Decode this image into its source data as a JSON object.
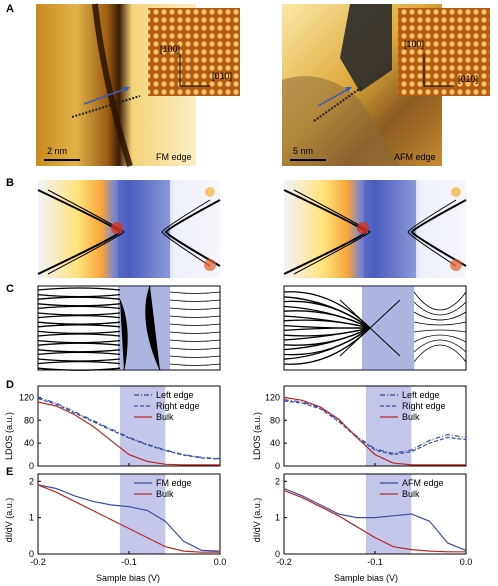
{
  "panel_labels": {
    "A": "A",
    "B": "B",
    "C": "C",
    "D": "D",
    "E": "E"
  },
  "stm_images": [
    {
      "scale_bar": "2 nm",
      "edge_label": "FM edge",
      "dir1": "[100]",
      "dir2": "[010]"
    },
    {
      "scale_bar": "5 nm",
      "edge_label": "AFM edge",
      "dir1": "[100]",
      "dir2": "[010]"
    }
  ],
  "axes": {
    "D_ylabel": "LDOS (a.u.)",
    "E_ylabel": "dI/dV (a.u.)",
    "xlabel": "Sample bias (V)",
    "D_yticks": [
      "0",
      "40",
      "80",
      "120"
    ],
    "E_yticks": [
      "0",
      "1",
      "2"
    ],
    "xticks": [
      "-0.2",
      "-0.1",
      "0.0"
    ]
  },
  "chart_data": [
    {
      "type": "line",
      "panel": "D",
      "side": "left",
      "xlim": [
        -0.2,
        0.0
      ],
      "ylim": [
        0,
        140
      ],
      "series": [
        {
          "name": "Left edge",
          "style": "dashdot",
          "color": "#3b4fa3",
          "x": [
            -0.2,
            -0.18,
            -0.16,
            -0.14,
            -0.12,
            -0.1,
            -0.08,
            -0.06,
            -0.04,
            -0.02,
            0.0
          ],
          "y": [
            120,
            110,
            95,
            80,
            65,
            50,
            38,
            28,
            20,
            15,
            13
          ]
        },
        {
          "name": "Right edge",
          "style": "dash",
          "color": "#3b4fa3",
          "x": [
            -0.2,
            -0.18,
            -0.16,
            -0.14,
            -0.12,
            -0.1,
            -0.08,
            -0.06,
            -0.04,
            -0.02,
            0.0
          ],
          "y": [
            118,
            108,
            93,
            78,
            63,
            49,
            37,
            27,
            19,
            14,
            12
          ]
        },
        {
          "name": "Bulk",
          "style": "solid",
          "color": "#b52b2b",
          "x": [
            -0.2,
            -0.18,
            -0.16,
            -0.14,
            -0.12,
            -0.1,
            -0.08,
            -0.06,
            -0.04,
            -0.02,
            0.0
          ],
          "y": [
            112,
            105,
            90,
            70,
            45,
            20,
            8,
            3,
            2,
            2,
            2
          ]
        }
      ]
    },
    {
      "type": "line",
      "panel": "D",
      "side": "right",
      "xlim": [
        -0.2,
        0.0
      ],
      "ylim": [
        0,
        140
      ],
      "series": [
        {
          "name": "Left edge",
          "style": "dashdot",
          "color": "#3b4fa3",
          "x": [
            -0.2,
            -0.18,
            -0.16,
            -0.14,
            -0.12,
            -0.1,
            -0.08,
            -0.06,
            -0.04,
            -0.02,
            0.0
          ],
          "y": [
            116,
            112,
            102,
            80,
            52,
            30,
            22,
            28,
            45,
            55,
            50
          ]
        },
        {
          "name": "Right edge",
          "style": "dash",
          "color": "#3b4fa3",
          "x": [
            -0.2,
            -0.18,
            -0.16,
            -0.14,
            -0.12,
            -0.1,
            -0.08,
            -0.06,
            -0.04,
            -0.02,
            0.0
          ],
          "y": [
            114,
            110,
            100,
            78,
            50,
            28,
            20,
            25,
            40,
            50,
            46
          ]
        },
        {
          "name": "Bulk",
          "style": "solid",
          "color": "#b52b2b",
          "x": [
            -0.2,
            -0.18,
            -0.16,
            -0.14,
            -0.12,
            -0.1,
            -0.08,
            -0.06,
            -0.04,
            -0.02,
            0.0
          ],
          "y": [
            120,
            115,
            103,
            82,
            50,
            20,
            5,
            2,
            2,
            2,
            2
          ]
        }
      ]
    },
    {
      "type": "line",
      "panel": "E",
      "side": "left",
      "xlim": [
        -0.2,
        0.0
      ],
      "ylim": [
        0,
        2.2
      ],
      "series": [
        {
          "name": "FM edge",
          "style": "solid",
          "color": "#3b4fa3",
          "x": [
            -0.2,
            -0.18,
            -0.16,
            -0.14,
            -0.12,
            -0.1,
            -0.08,
            -0.06,
            -0.04,
            -0.02,
            0.0
          ],
          "y": [
            1.9,
            1.8,
            1.6,
            1.45,
            1.35,
            1.3,
            1.2,
            0.9,
            0.35,
            0.1,
            0.08
          ]
        },
        {
          "name": "Bulk",
          "style": "solid",
          "color": "#b52b2b",
          "x": [
            -0.2,
            -0.18,
            -0.16,
            -0.14,
            -0.12,
            -0.1,
            -0.08,
            -0.06,
            -0.04,
            -0.02,
            0.0
          ],
          "y": [
            1.9,
            1.7,
            1.45,
            1.2,
            0.95,
            0.7,
            0.45,
            0.2,
            0.08,
            0.05,
            0.05
          ]
        }
      ]
    },
    {
      "type": "line",
      "panel": "E",
      "side": "right",
      "xlim": [
        -0.2,
        0.0
      ],
      "ylim": [
        0,
        2.2
      ],
      "series": [
        {
          "name": "AFM edge",
          "style": "solid",
          "color": "#3b4fa3",
          "x": [
            -0.2,
            -0.18,
            -0.16,
            -0.14,
            -0.12,
            -0.1,
            -0.08,
            -0.06,
            -0.04,
            -0.02,
            0.0
          ],
          "y": [
            1.8,
            1.6,
            1.35,
            1.1,
            1.0,
            1.0,
            1.05,
            1.1,
            0.9,
            0.3,
            0.1
          ]
        },
        {
          "name": "Bulk",
          "style": "solid",
          "color": "#b52b2b",
          "x": [
            -0.2,
            -0.18,
            -0.16,
            -0.14,
            -0.12,
            -0.1,
            -0.08,
            -0.06,
            -0.04,
            -0.02,
            0.0
          ],
          "y": [
            1.75,
            1.55,
            1.3,
            1.05,
            0.75,
            0.45,
            0.2,
            0.12,
            0.08,
            0.06,
            0.06
          ]
        }
      ]
    }
  ]
}
